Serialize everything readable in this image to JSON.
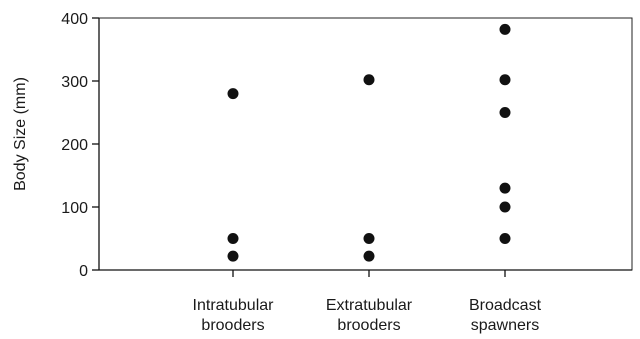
{
  "chart_data": {
    "type": "scatter",
    "ylabel": "Body Size (mm)",
    "ylim": [
      0,
      400
    ],
    "yticks": [
      0,
      100,
      200,
      300,
      400
    ],
    "categories": [
      [
        "Intratubular",
        "brooders"
      ],
      [
        "Extratubular",
        "brooders"
      ],
      [
        "Broadcast",
        "spawners"
      ]
    ],
    "points": [
      {
        "category": 0,
        "values": [
          280,
          50,
          22
        ]
      },
      {
        "category": 1,
        "values": [
          302,
          50,
          22
        ]
      },
      {
        "category": 2,
        "values": [
          382,
          302,
          250,
          130,
          100,
          50
        ]
      }
    ],
    "grid": false,
    "legend": "none",
    "marker_color": "#111111"
  }
}
